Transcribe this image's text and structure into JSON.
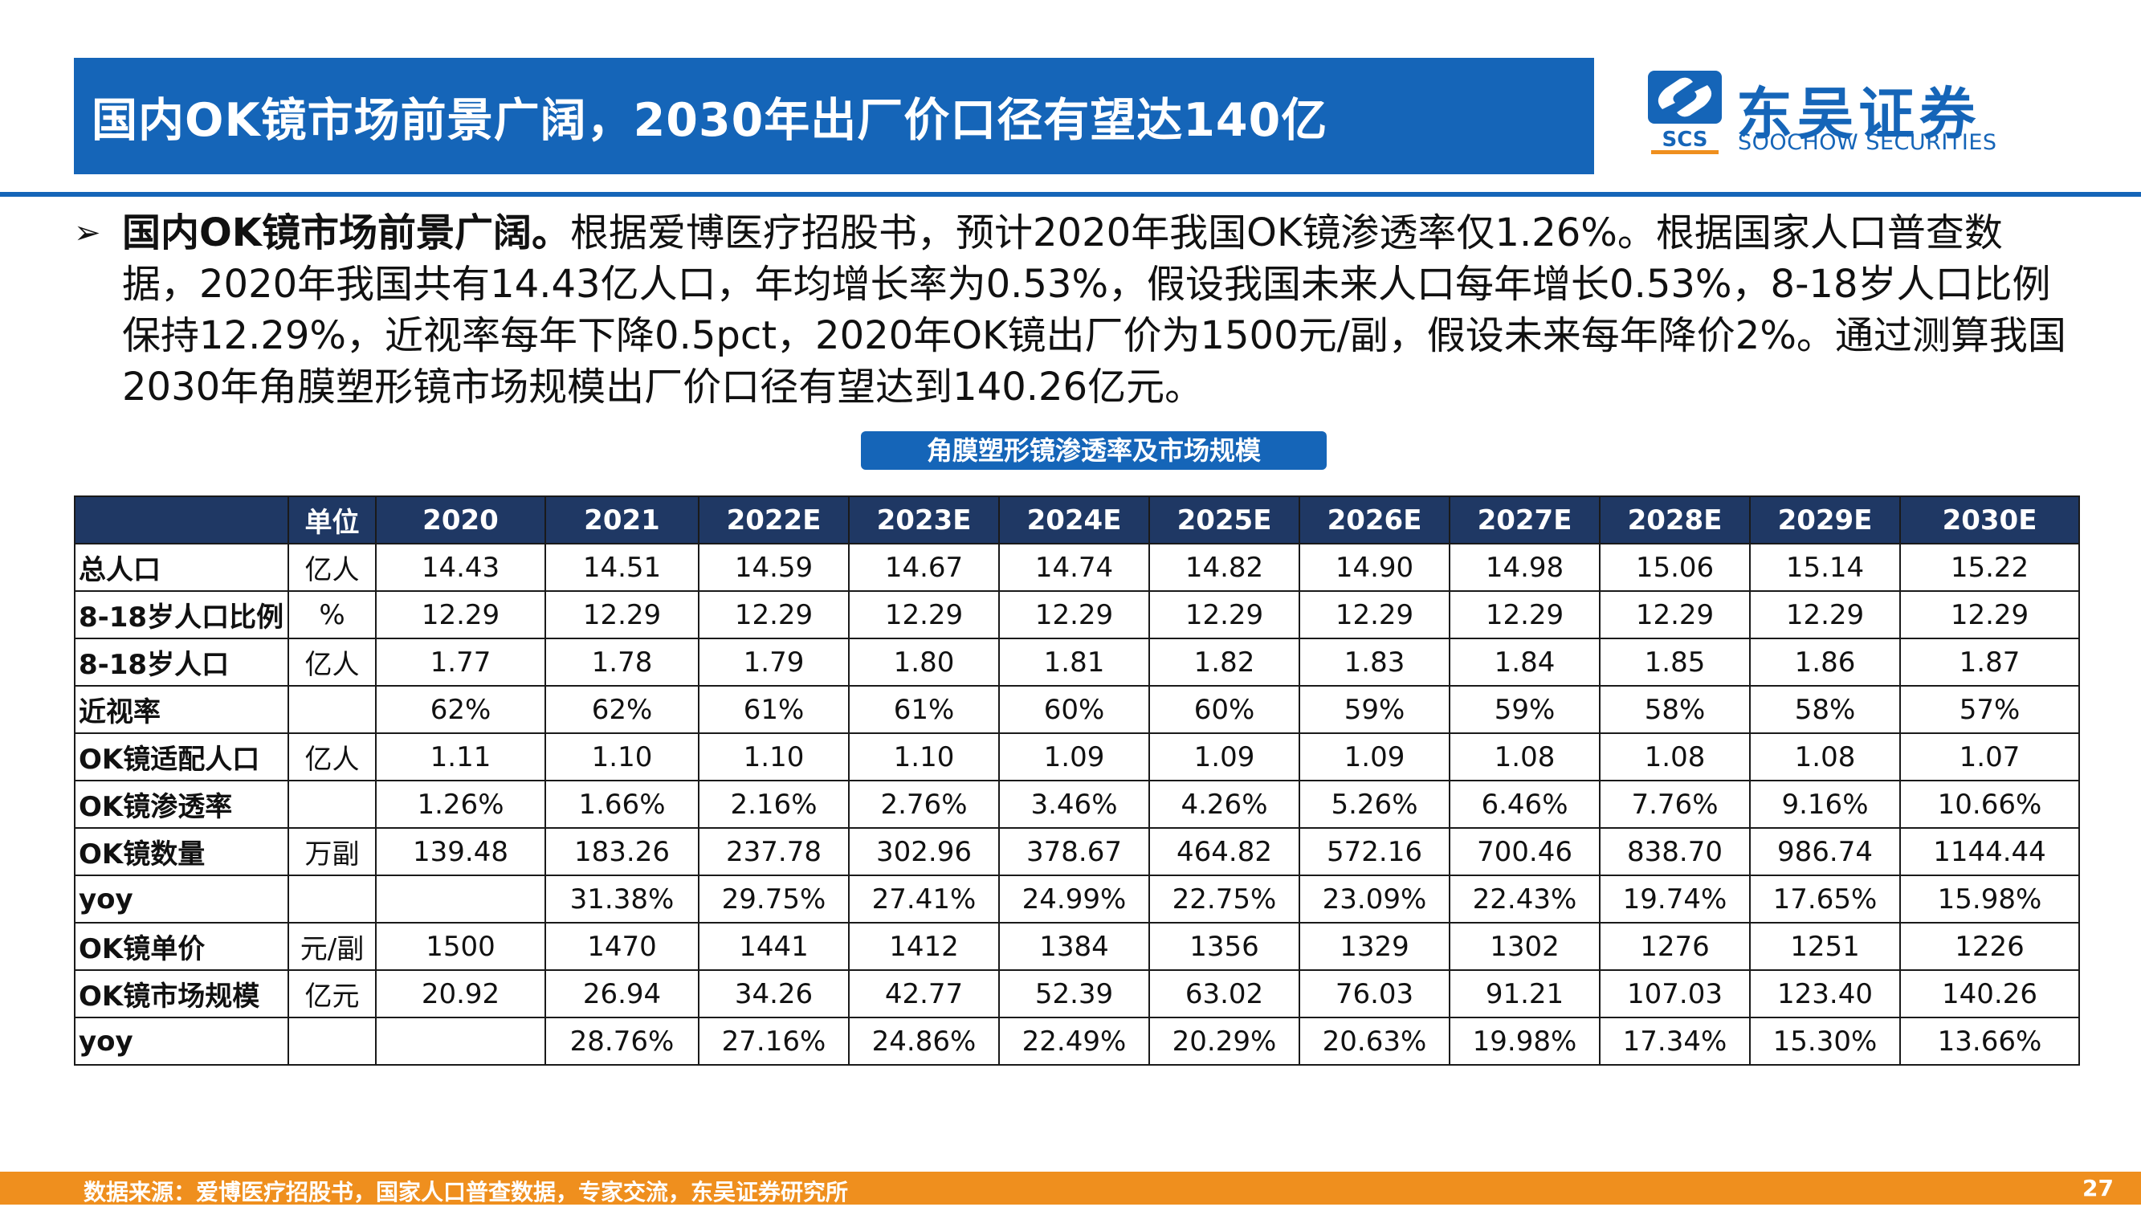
{
  "header": {
    "title": "国内OK镜市场前景广阔，2030年出厂价口径有望达140亿",
    "logo": {
      "mark_text": "SCS",
      "name_cn": "东吴证券",
      "name_en": "SOOCHOW SECURITIES",
      "brand_color": "#1565b8"
    }
  },
  "bullet": {
    "icon": "arrow-bullet-icon",
    "lead": "国内OK镜市场前景广阔。",
    "body": "根据爱博医疗招股书，预计2020年我国OK镜渗透率仅1.26%。根据国家人口普查数据，2020年我国共有14.43亿人口，年均增长率为0.53%，假设我国未来人口每年增长0.53%，8-18岁人口比例保持12.29%，近视率每年下降0.5pct，2020年OK镜出厂价为1500元/副，假设未来每年降价2%。通过测算我国2030年角膜塑形镜市场规模出厂价口径有望达到140.26亿元。"
  },
  "table": {
    "title": "角膜塑形镜渗透率及市场规模",
    "columns": [
      "",
      "单位",
      "2020",
      "2021",
      "2022E",
      "2023E",
      "2024E",
      "2025E",
      "2026E",
      "2027E",
      "2028E",
      "2029E",
      "2030E"
    ],
    "rows": [
      {
        "label": "总人口",
        "unit": "亿人",
        "values": [
          "14.43",
          "14.51",
          "14.59",
          "14.67",
          "14.74",
          "14.82",
          "14.90",
          "14.98",
          "15.06",
          "15.14",
          "15.22"
        ]
      },
      {
        "label": "8-18岁人口比例",
        "unit": "%",
        "values": [
          "12.29",
          "12.29",
          "12.29",
          "12.29",
          "12.29",
          "12.29",
          "12.29",
          "12.29",
          "12.29",
          "12.29",
          "12.29"
        ]
      },
      {
        "label": "8-18岁人口",
        "unit": "亿人",
        "values": [
          "1.77",
          "1.78",
          "1.79",
          "1.80",
          "1.81",
          "1.82",
          "1.83",
          "1.84",
          "1.85",
          "1.86",
          "1.87"
        ]
      },
      {
        "label": "近视率",
        "unit": "",
        "values": [
          "62%",
          "62%",
          "61%",
          "61%",
          "60%",
          "60%",
          "59%",
          "59%",
          "58%",
          "58%",
          "57%"
        ]
      },
      {
        "label": "OK镜适配人口",
        "unit": "亿人",
        "values": [
          "1.11",
          "1.10",
          "1.10",
          "1.10",
          "1.09",
          "1.09",
          "1.09",
          "1.08",
          "1.08",
          "1.08",
          "1.07"
        ]
      },
      {
        "label": "OK镜渗透率",
        "unit": "",
        "values": [
          "1.26%",
          "1.66%",
          "2.16%",
          "2.76%",
          "3.46%",
          "4.26%",
          "5.26%",
          "6.46%",
          "7.76%",
          "9.16%",
          "10.66%"
        ]
      },
      {
        "label": "OK镜数量",
        "unit": "万副",
        "values": [
          "139.48",
          "183.26",
          "237.78",
          "302.96",
          "378.67",
          "464.82",
          "572.16",
          "700.46",
          "838.70",
          "986.74",
          "1144.44"
        ]
      },
      {
        "label": "yoy",
        "unit": "",
        "values": [
          "",
          "31.38%",
          "29.75%",
          "27.41%",
          "24.99%",
          "22.75%",
          "23.09%",
          "22.43%",
          "19.74%",
          "17.65%",
          "15.98%"
        ]
      },
      {
        "label": "OK镜单价",
        "unit": "元/副",
        "values": [
          "1500",
          "1470",
          "1441",
          "1412",
          "1384",
          "1356",
          "1329",
          "1302",
          "1276",
          "1251",
          "1226"
        ]
      },
      {
        "label": "OK镜市场规模",
        "unit": "亿元",
        "values": [
          "20.92",
          "26.94",
          "34.26",
          "42.77",
          "52.39",
          "63.02",
          "76.03",
          "91.21",
          "107.03",
          "123.40",
          "140.26"
        ]
      },
      {
        "label": "yoy",
        "unit": "",
        "values": [
          "",
          "28.76%",
          "27.16%",
          "24.86%",
          "22.49%",
          "20.29%",
          "20.63%",
          "19.98%",
          "17.34%",
          "15.30%",
          "13.66%"
        ]
      }
    ]
  },
  "footer": {
    "source": "数据来源：爱博医疗招股书，国家人口普查数据，专家交流，东吴证券研究所",
    "page": "27",
    "color": "#ef8f1e"
  },
  "colors": {
    "title_bar": "#1565b8",
    "table_header": "#1f3864"
  }
}
